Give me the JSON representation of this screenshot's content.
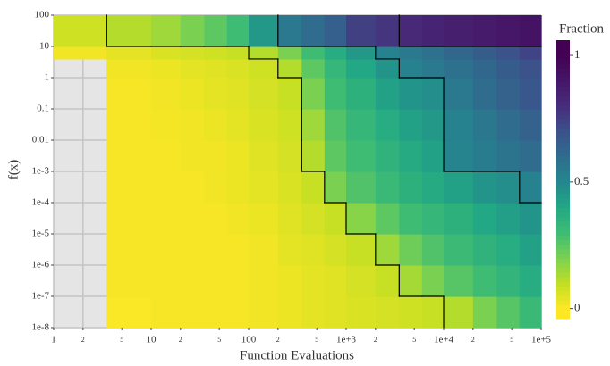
{
  "chart_data": {
    "type": "heatmap",
    "x_label": "Function Evaluations",
    "y_label": "f(x)",
    "colorbar_title": "Fraction",
    "x_log": true,
    "y_log": true,
    "grid": true,
    "background": "#e5e5e5",
    "grid_color": "#c4c4c4",
    "contour_color": "#000000",
    "xlim": [
      1,
      100000
    ],
    "ylim": [
      1e-08,
      100
    ],
    "xticks": [
      1,
      {
        "value": 2,
        "label": "2"
      },
      {
        "value": 5,
        "label": "5"
      },
      10,
      {
        "value": 20,
        "label": "2"
      },
      {
        "value": 50,
        "label": "5"
      },
      100,
      {
        "value": 200,
        "label": "2"
      },
      {
        "value": 500,
        "label": "5"
      },
      {
        "value": 1000,
        "label": "1e+3"
      },
      {
        "value": 2000,
        "label": "2"
      },
      {
        "value": 5000,
        "label": "5"
      },
      {
        "value": 10000,
        "label": "1e+4"
      },
      {
        "value": 20000,
        "label": "2"
      },
      {
        "value": 50000,
        "label": "5"
      },
      {
        "value": 100000,
        "label": "1e+5"
      }
    ],
    "yticks": [
      {
        "value": 1e-08,
        "label": "1e-8"
      },
      {
        "value": 1e-07,
        "label": "1e-7"
      },
      {
        "value": 1e-06,
        "label": "1e-6"
      },
      {
        "value": 1e-05,
        "label": "1e-5"
      },
      {
        "value": 0.0001,
        "label": "1e-4"
      },
      {
        "value": 0.001,
        "label": "1e-3"
      },
      0.01,
      0.1,
      1,
      10,
      100
    ],
    "x_edges": [
      1,
      3.5,
      10,
      20,
      35,
      60,
      100,
      200,
      350,
      600,
      1000,
      2000,
      3500,
      6000,
      10000,
      20000,
      35000,
      60000,
      100000
    ],
    "y_edges": [
      1e-08,
      1e-07,
      1e-06,
      1e-05,
      0.0001,
      0.001,
      0.01,
      0.1,
      1,
      4,
      10,
      100
    ],
    "z": [
      [
        null,
        0.005,
        0.01,
        0.01,
        0.01,
        0.01,
        0.02,
        0.03,
        0.04,
        0.05,
        0.06,
        0.07,
        0.08,
        0.09,
        0.12,
        0.2,
        0.26,
        0.32
      ],
      [
        null,
        0.01,
        0.01,
        0.01,
        0.01,
        0.01,
        0.02,
        0.03,
        0.04,
        0.05,
        0.07,
        0.09,
        0.14,
        0.2,
        0.26,
        0.3,
        0.34,
        0.38
      ],
      [
        null,
        0.01,
        0.01,
        0.01,
        0.01,
        0.01,
        0.02,
        0.04,
        0.05,
        0.07,
        0.09,
        0.15,
        0.22,
        0.27,
        0.31,
        0.35,
        0.38,
        0.42
      ],
      [
        null,
        0.01,
        0.01,
        0.01,
        0.01,
        0.02,
        0.03,
        0.05,
        0.07,
        0.09,
        0.18,
        0.25,
        0.3,
        0.33,
        0.36,
        0.4,
        0.43,
        0.46
      ],
      [
        null,
        0.01,
        0.01,
        0.01,
        0.02,
        0.03,
        0.04,
        0.06,
        0.09,
        0.2,
        0.27,
        0.32,
        0.36,
        0.39,
        0.42,
        0.46,
        0.48,
        0.52
      ],
      [
        null,
        0.01,
        0.01,
        0.02,
        0.02,
        0.03,
        0.05,
        0.07,
        0.12,
        0.25,
        0.3,
        0.35,
        0.39,
        0.42,
        0.51,
        0.54,
        0.57,
        0.6
      ],
      [
        null,
        0.01,
        0.015,
        0.02,
        0.03,
        0.04,
        0.06,
        0.08,
        0.15,
        0.27,
        0.33,
        0.38,
        0.42,
        0.45,
        0.52,
        0.56,
        0.6,
        0.64
      ],
      [
        null,
        0.01,
        0.02,
        0.03,
        0.04,
        0.05,
        0.07,
        0.09,
        0.2,
        0.3,
        0.36,
        0.42,
        0.46,
        0.48,
        0.55,
        0.6,
        0.64,
        0.68
      ],
      [
        null,
        0.02,
        0.03,
        0.04,
        0.05,
        0.06,
        0.08,
        0.12,
        0.25,
        0.33,
        0.4,
        0.46,
        0.52,
        0.55,
        0.58,
        0.62,
        0.66,
        0.7
      ],
      [
        0.02,
        0.04,
        0.06,
        0.07,
        0.08,
        0.09,
        0.12,
        0.2,
        0.3,
        0.38,
        0.45,
        0.52,
        0.55,
        0.58,
        0.62,
        0.66,
        0.7,
        0.74
      ],
      [
        0.08,
        0.12,
        0.15,
        0.2,
        0.25,
        0.3,
        0.45,
        0.55,
        0.6,
        0.65,
        0.75,
        0.78,
        0.82,
        0.84,
        0.86,
        0.88,
        0.9,
        0.92
      ]
    ],
    "contour_levels": [
      0.1,
      0.5,
      0.8
    ],
    "zlim": [
      -0.04,
      1.06
    ],
    "zticks": [
      0,
      0.5,
      1
    ],
    "colorscale": [
      [
        0,
        "#fde725"
      ],
      [
        0.1,
        "#c2df23"
      ],
      [
        0.2,
        "#7ad151"
      ],
      [
        0.3,
        "#3fbc73"
      ],
      [
        0.4,
        "#22a884"
      ],
      [
        0.5,
        "#24878e"
      ],
      [
        0.6,
        "#2f6c8e"
      ],
      [
        0.7,
        "#3b528b"
      ],
      [
        0.8,
        "#472d7b"
      ],
      [
        1,
        "#440154"
      ]
    ]
  }
}
